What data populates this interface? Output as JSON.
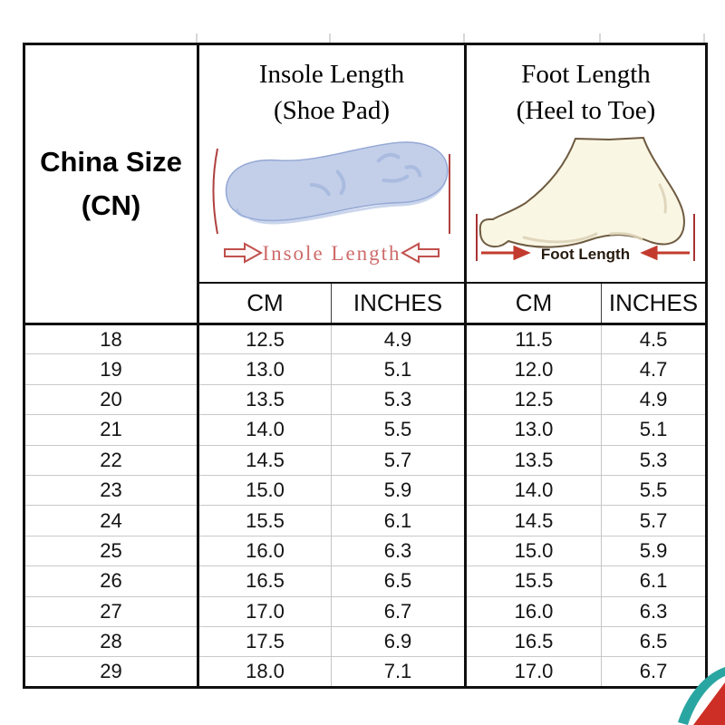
{
  "chart_data": {
    "type": "table",
    "title": "",
    "columns": [
      "China Size (CN)",
      "Insole Length (Shoe Pad) CM",
      "Insole Length (Shoe Pad) INCHES",
      "Foot Length (Heel to Toe) CM",
      "Foot Length (Heel to Toe) INCHES"
    ],
    "rows": [
      [
        18,
        12.5,
        4.9,
        11.5,
        4.5
      ],
      [
        19,
        13.0,
        5.1,
        12.0,
        4.7
      ],
      [
        20,
        13.5,
        5.3,
        12.5,
        4.9
      ],
      [
        21,
        14.0,
        5.5,
        13.0,
        5.1
      ],
      [
        22,
        14.5,
        5.7,
        13.5,
        5.3
      ],
      [
        23,
        15.0,
        5.9,
        14.0,
        5.5
      ],
      [
        24,
        15.5,
        6.1,
        14.5,
        5.7
      ],
      [
        25,
        16.0,
        6.3,
        15.0,
        5.9
      ],
      [
        26,
        16.5,
        6.5,
        15.5,
        6.1
      ],
      [
        27,
        17.0,
        6.7,
        16.0,
        6.3
      ],
      [
        28,
        17.5,
        6.9,
        16.5,
        6.5
      ],
      [
        29,
        18.0,
        7.1,
        17.0,
        6.7
      ]
    ],
    "legend": "none",
    "grid": "table borders: thick black group dividers, thin gray row separators"
  },
  "table": {
    "corner": {
      "line1": "China Size",
      "line2": "(CN)"
    },
    "groups": [
      {
        "line1": "Insole Length",
        "line2": "(Shoe Pad)",
        "caption": "Insole Length"
      },
      {
        "line1": "Foot Length",
        "line2": "(Heel to Toe)",
        "caption": "Foot Length"
      }
    ],
    "subheaders": [
      "CM",
      "INCHES",
      "CM",
      "INCHES"
    ],
    "rows": [
      [
        "18",
        "12.5",
        "4.9",
        "11.5",
        "4.5"
      ],
      [
        "19",
        "13.0",
        "5.1",
        "12.0",
        "4.7"
      ],
      [
        "20",
        "13.5",
        "5.3",
        "12.5",
        "4.9"
      ],
      [
        "21",
        "14.0",
        "5.5",
        "13.0",
        "5.1"
      ],
      [
        "22",
        "14.5",
        "5.7",
        "13.5",
        "5.3"
      ],
      [
        "23",
        "15.0",
        "5.9",
        "14.0",
        "5.5"
      ],
      [
        "24",
        "15.5",
        "6.1",
        "14.5",
        "5.7"
      ],
      [
        "25",
        "16.0",
        "6.3",
        "15.0",
        "5.9"
      ],
      [
        "26",
        "16.5",
        "6.5",
        "15.5",
        "6.1"
      ],
      [
        "27",
        "17.0",
        "6.7",
        "16.0",
        "6.3"
      ],
      [
        "28",
        "17.5",
        "6.9",
        "16.5",
        "6.5"
      ],
      [
        "29",
        "18.0",
        "7.1",
        "17.0",
        "6.7"
      ]
    ]
  },
  "icons": {
    "insole": "insole-top-view-illustration",
    "foot": "foot-side-profile-illustration",
    "ribbon": "teal-red-corner-swoosh"
  },
  "colors": {
    "border_black": "#101010",
    "row_line_gray": "#c9c9c9",
    "insole_fill": "#c3cfe9",
    "insole_edge": "#93a7d4",
    "foot_fill": "#faf6e4",
    "foot_outline": "#6e5b41",
    "measure_red": "#b04040",
    "caption_red": "#ce6b6b",
    "arrow_red": "#c23b2e",
    "ribbon_teal": "#2aa6a2",
    "ribbon_red": "#cd2f26"
  }
}
